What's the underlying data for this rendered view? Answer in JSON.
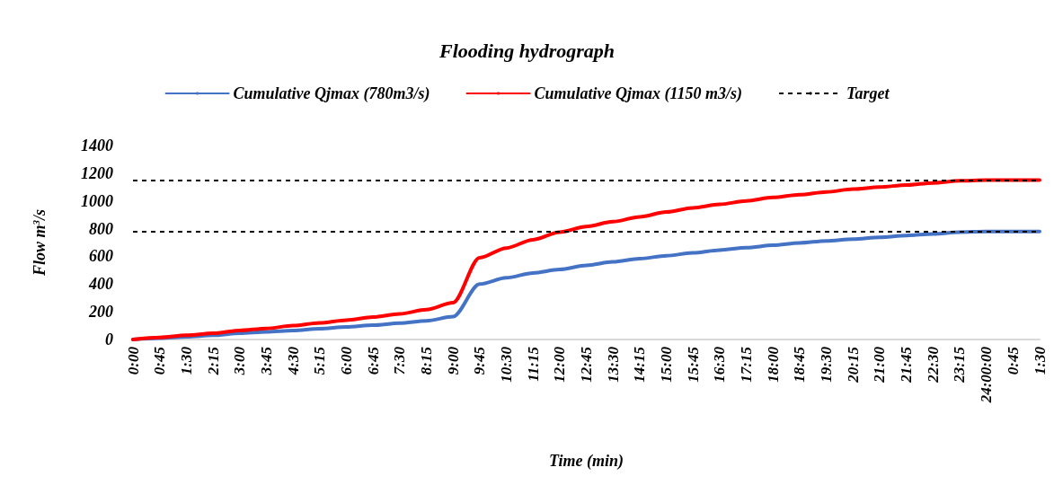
{
  "chart_data": {
    "type": "line",
    "title": "Flooding hydrograph",
    "xlabel": "Time (min)",
    "ylabel": "Flow m$^{3}$/s",
    "categories": [
      "0:00",
      "0:45",
      "1:30",
      "2:15",
      "3:00",
      "3:45",
      "4:30",
      "5:15",
      "6:00",
      "6:45",
      "7:30",
      "8:15",
      "9:00",
      "9:45",
      "10:30",
      "11:15",
      "12:00",
      "12:45",
      "13:30",
      "14:15",
      "15:00",
      "15:45",
      "16:30",
      "17:15",
      "18:00",
      "18:45",
      "19:30",
      "20:15",
      "21:00",
      "21:45",
      "22:30",
      "23:15",
      "24:00:00",
      "0:45",
      "1:30"
    ],
    "ylim": [
      0,
      1400
    ],
    "yticks": [
      0,
      200,
      400,
      600,
      800,
      1000,
      1200,
      1400
    ],
    "series": [
      {
        "name": "Cumulative Qjmax (780m3/s)",
        "color": "#4472c4",
        "values": [
          0,
          10,
          20,
          30,
          45,
          55,
          65,
          78,
          90,
          103,
          118,
          135,
          165,
          400,
          445,
          480,
          505,
          535,
          560,
          583,
          605,
          625,
          645,
          663,
          680,
          697,
          712,
          725,
          738,
          750,
          762,
          775,
          780,
          780,
          780
        ]
      },
      {
        "name": "Cumulative Qjmax (1150 m3/s)",
        "color": "#ff0000",
        "values": [
          0,
          15,
          30,
          45,
          65,
          80,
          100,
          120,
          140,
          162,
          185,
          215,
          265,
          590,
          660,
          720,
          775,
          815,
          850,
          885,
          920,
          950,
          975,
          1000,
          1025,
          1045,
          1065,
          1085,
          1100,
          1115,
          1130,
          1145,
          1150,
          1150,
          1150
        ]
      }
    ],
    "ref_lines": [
      {
        "axis": "y",
        "value": 1150,
        "label": "Target",
        "color": "#000000",
        "line_style": "dashed"
      },
      {
        "axis": "y",
        "value": 780,
        "color": "#000000",
        "line_style": "dashed"
      }
    ],
    "grid": false,
    "legend": "top",
    "marker": "none",
    "line_style": "solid"
  }
}
